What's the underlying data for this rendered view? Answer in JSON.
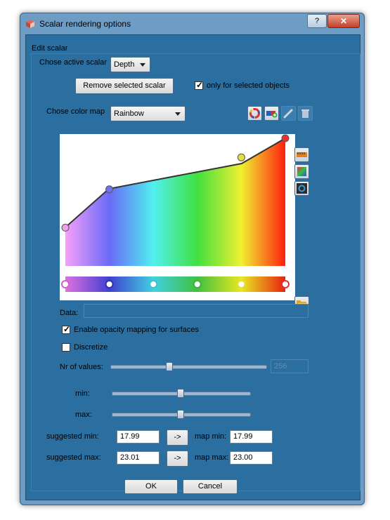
{
  "window": {
    "title": "Scalar rendering options",
    "help_glyph": "?",
    "close_glyph": "✕"
  },
  "group": {
    "title": "Edit scalar"
  },
  "scalar": {
    "label": "Chose active scalar",
    "selected": "Depth",
    "remove_label": "Remove selected scalar",
    "only_selected_label": "only for selected objects",
    "only_selected_checked": true
  },
  "colormap": {
    "label": "Chose color map",
    "selected": "Rainbow",
    "icons": [
      "color-wheel-icon",
      "add-colormap-icon",
      "edit-pen-icon",
      "trash-icon"
    ],
    "side_icons": [
      "ruler-icon",
      "gradient-icon",
      "refresh-icon"
    ],
    "open_icon": "folder-open-icon",
    "opacity_points": [
      {
        "pos": 0.0,
        "opacity": 0.3,
        "color": "#f0a0f0"
      },
      {
        "pos": 0.2,
        "opacity": 0.6,
        "color": "#7070f0"
      },
      {
        "pos": 0.8,
        "opacity": 0.85,
        "color": "#e0e040"
      },
      {
        "pos": 1.0,
        "opacity": 1.0,
        "color": "#f03030"
      }
    ],
    "color_points": [
      "#d060d0",
      "#3030b0",
      "#40c0d0",
      "#40b040",
      "#e0e040",
      "#e03030"
    ]
  },
  "data": {
    "label": "Data:",
    "value": ""
  },
  "opacity": {
    "label": "Enable opacity mapping for surfaces",
    "checked": true
  },
  "discretize": {
    "label": "Discretize",
    "checked": false
  },
  "nr_values": {
    "label": "Nr of values:",
    "slider_value": 0.38,
    "value": "256"
  },
  "range": {
    "min_label": "min:",
    "max_label": "max:",
    "min_slider": 0.5,
    "max_slider": 0.5
  },
  "suggested": {
    "min_label": "suggested min:",
    "min_value": "17.99",
    "max_label": "suggested max:",
    "max_value": "23.01",
    "arrow_label": "->"
  },
  "map": {
    "min_label": "map min:",
    "min_value": "17.99",
    "max_label": "map max:",
    "max_value": "23.00"
  },
  "buttons": {
    "ok": "OK",
    "cancel": "Cancel"
  }
}
